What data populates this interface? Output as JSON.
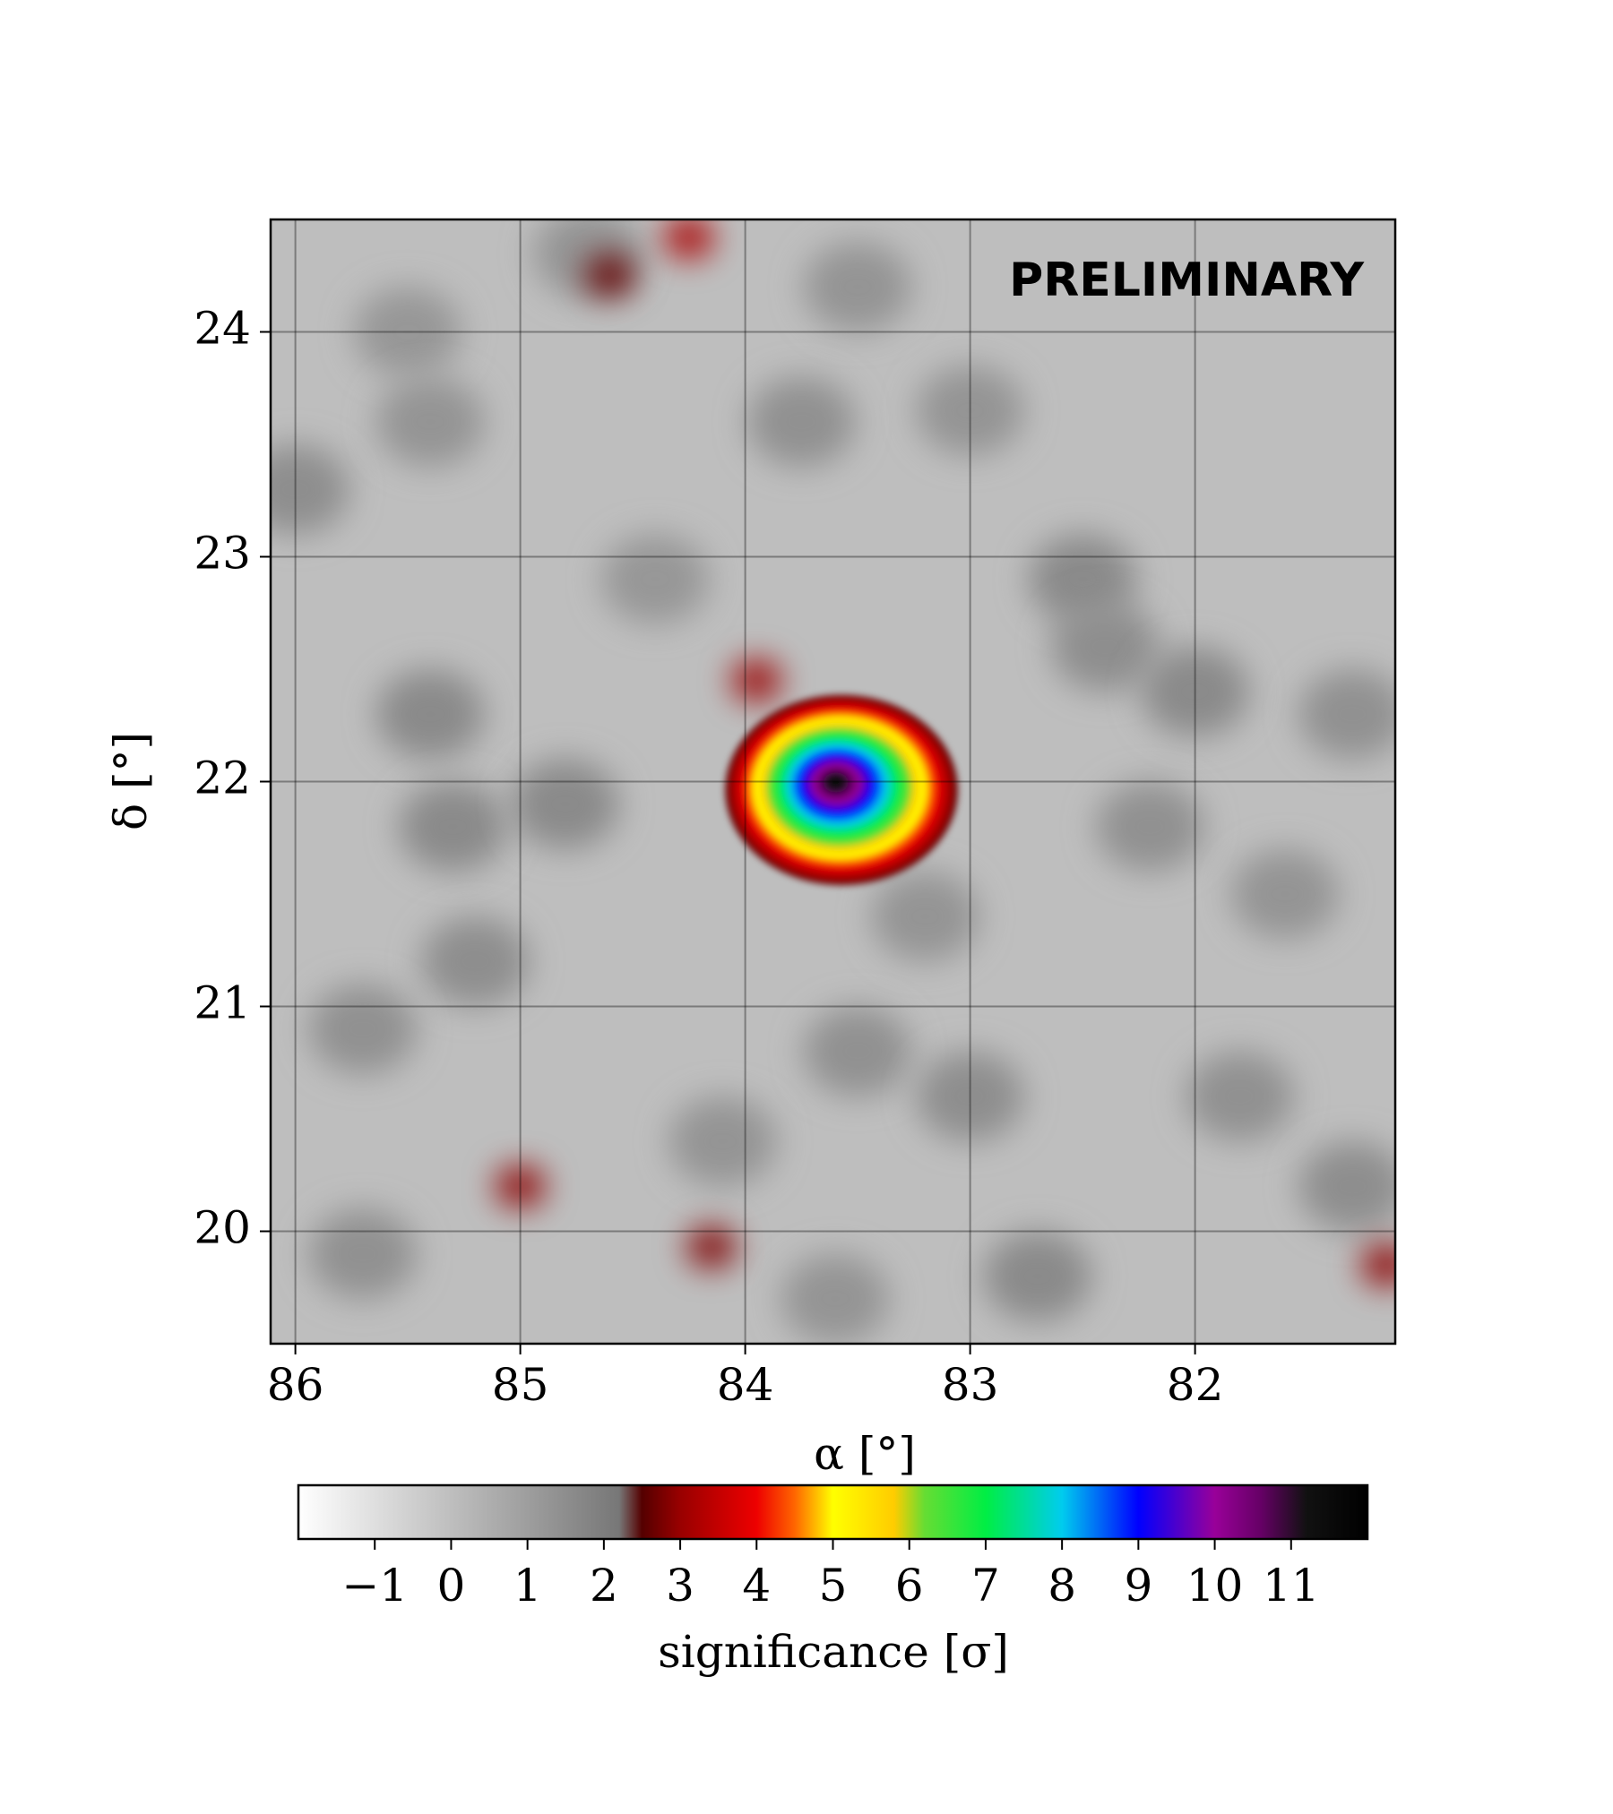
{
  "chart_data": {
    "type": "significance-map",
    "annotation": "PRELIMINARY",
    "xlabel": "α [°]",
    "ylabel": "δ [°]",
    "xlim": [
      86.11,
      81.11
    ],
    "xticks": [
      86,
      85,
      84,
      83,
      82
    ],
    "ylim": [
      19.5,
      24.5
    ],
    "yticks": [
      20,
      21,
      22,
      23,
      24
    ],
    "grid": true,
    "background": 0,
    "source": {
      "x": 83.6,
      "y": 22.0,
      "peak": 11.5
    },
    "features": [
      {
        "x": 85.5,
        "y": 24.0,
        "value": 1.2
      },
      {
        "x": 86.0,
        "y": 23.3,
        "value": 1.5
      },
      {
        "x": 85.4,
        "y": 23.6,
        "value": 1.3
      },
      {
        "x": 83.75,
        "y": 23.6,
        "value": 1.4
      },
      {
        "x": 83.0,
        "y": 23.65,
        "value": 1.3
      },
      {
        "x": 83.5,
        "y": 24.2,
        "value": 1.3
      },
      {
        "x": 84.7,
        "y": 24.35,
        "value": 1.3
      },
      {
        "x": 82.5,
        "y": 22.9,
        "value": 1.6
      },
      {
        "x": 82.4,
        "y": 22.6,
        "value": 1.5
      },
      {
        "x": 82.0,
        "y": 22.4,
        "value": 1.6
      },
      {
        "x": 81.3,
        "y": 22.3,
        "value": 1.4
      },
      {
        "x": 85.4,
        "y": 22.3,
        "value": 1.6
      },
      {
        "x": 85.3,
        "y": 21.8,
        "value": 1.6
      },
      {
        "x": 84.8,
        "y": 21.9,
        "value": 1.6
      },
      {
        "x": 85.2,
        "y": 21.2,
        "value": 1.5
      },
      {
        "x": 85.7,
        "y": 20.9,
        "value": 1.4
      },
      {
        "x": 84.1,
        "y": 20.4,
        "value": 1.3
      },
      {
        "x": 83.5,
        "y": 20.8,
        "value": 1.4
      },
      {
        "x": 83.0,
        "y": 20.6,
        "value": 1.5
      },
      {
        "x": 82.7,
        "y": 19.8,
        "value": 1.6
      },
      {
        "x": 81.8,
        "y": 20.6,
        "value": 1.4
      },
      {
        "x": 81.3,
        "y": 20.2,
        "value": 1.5
      },
      {
        "x": 83.6,
        "y": 19.7,
        "value": 1.3
      },
      {
        "x": 85.7,
        "y": 19.9,
        "value": 1.4
      },
      {
        "x": 82.2,
        "y": 21.8,
        "value": 1.4
      },
      {
        "x": 81.6,
        "y": 21.5,
        "value": 1.3
      },
      {
        "x": 83.2,
        "y": 21.4,
        "value": 1.3
      },
      {
        "x": 84.4,
        "y": 22.9,
        "value": 1.2
      },
      {
        "x": 84.25,
        "y": 24.42,
        "value": 3.2
      },
      {
        "x": 84.6,
        "y": 24.25,
        "value": 2.6
      },
      {
        "x": 85.0,
        "y": 20.2,
        "value": 2.9
      },
      {
        "x": 84.15,
        "y": 19.93,
        "value": 2.8
      },
      {
        "x": 81.15,
        "y": 19.85,
        "value": 2.9
      },
      {
        "x": 83.95,
        "y": 22.45,
        "value": 3.0
      }
    ],
    "colorbar": {
      "label": "significance [σ]",
      "lim": [
        -2,
        12
      ],
      "ticks": [
        {
          "value": -1,
          "label": "−1"
        },
        0,
        1,
        2,
        3,
        4,
        5,
        6,
        7,
        8,
        9,
        10,
        11
      ]
    },
    "colormap": [
      [
        -2,
        "#ffffff"
      ],
      [
        2.2,
        "#777777"
      ],
      [
        2.5,
        "#550000"
      ],
      [
        3,
        "#990000"
      ],
      [
        4,
        "#ee0000"
      ],
      [
        4.5,
        "#ff6600"
      ],
      [
        5,
        "#ffff00"
      ],
      [
        5.8,
        "#ffcc00"
      ],
      [
        6.2,
        "#66dd33"
      ],
      [
        7,
        "#00ee44"
      ],
      [
        8,
        "#00ccee"
      ],
      [
        9,
        "#0000ff"
      ],
      [
        10,
        "#990099"
      ],
      [
        10.6,
        "#660066"
      ],
      [
        11.2,
        "#111111"
      ],
      [
        12,
        "#000000"
      ]
    ]
  }
}
